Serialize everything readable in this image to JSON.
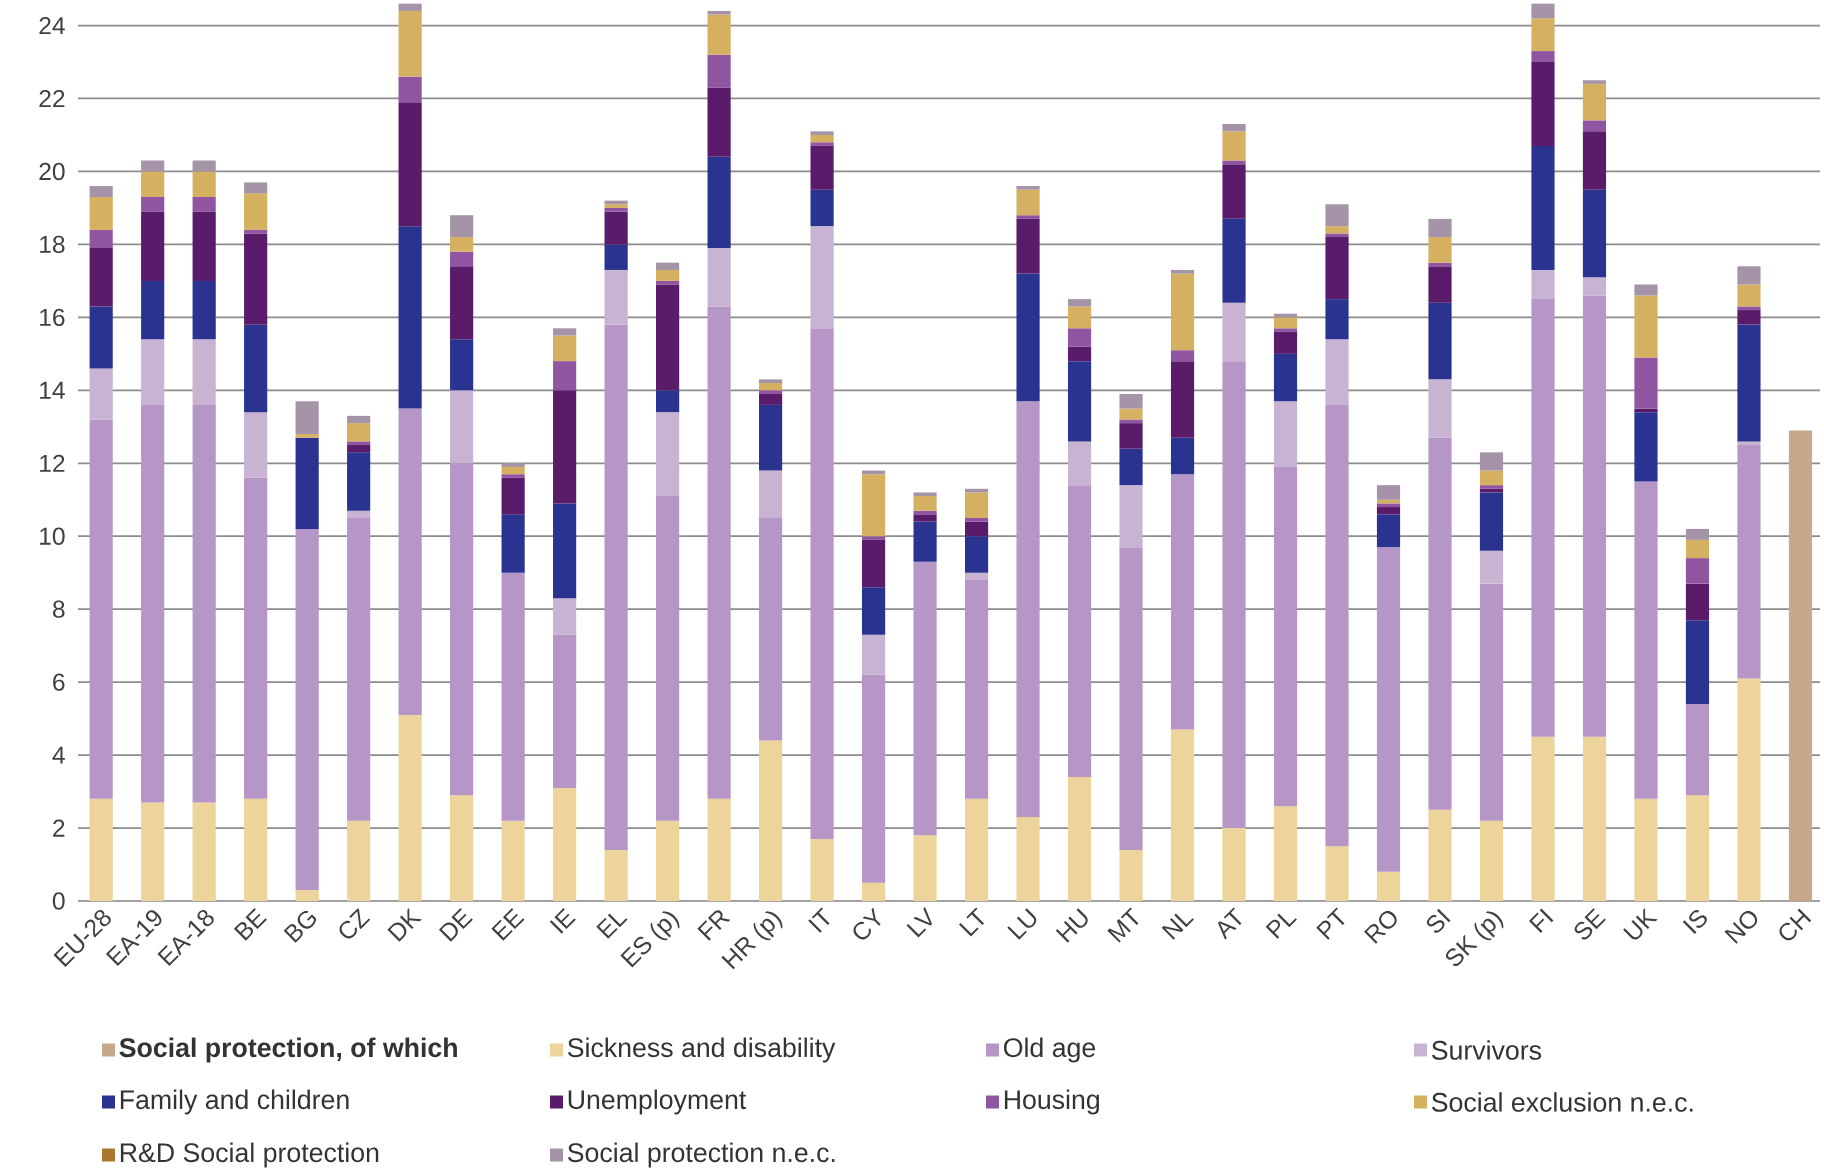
{
  "chart_data": {
    "type": "bar",
    "stacked": true,
    "grid": "y",
    "legend": "bottom",
    "categories": [
      "EU-28",
      "EA-19",
      "EA-18",
      "BE",
      "BG",
      "CZ",
      "DK",
      "DE",
      "EE",
      "IE",
      "EL",
      "ES (p)",
      "FR",
      "HR (p)",
      "IT",
      "CY",
      "LV",
      "LT",
      "LU",
      "HU",
      "MT",
      "NL",
      "AT",
      "PL",
      "PT",
      "RO",
      "SI",
      "SK (p)",
      "FI",
      "SE",
      "UK",
      "IS",
      "NO",
      "CH"
    ],
    "ylim": [
      0,
      24.7
    ],
    "yticks": [
      0,
      2,
      4,
      6,
      8,
      10,
      12,
      14,
      16,
      18,
      20,
      22,
      24
    ],
    "series": [
      {
        "name": "Social protection, of which",
        "color": "#c8a88a",
        "values": [
          null,
          null,
          null,
          null,
          null,
          null,
          null,
          null,
          null,
          null,
          null,
          null,
          null,
          null,
          null,
          null,
          null,
          null,
          null,
          null,
          null,
          null,
          null,
          null,
          null,
          null,
          null,
          null,
          null,
          null,
          null,
          null,
          null,
          12.9
        ]
      },
      {
        "name": "Sickness and disability",
        "color": "#ecd49a",
        "values": [
          2.8,
          2.7,
          2.7,
          2.8,
          0.3,
          2.2,
          5.1,
          2.9,
          2.2,
          3.1,
          1.4,
          2.2,
          2.8,
          4.4,
          1.7,
          0.5,
          1.8,
          2.8,
          2.3,
          3.4,
          1.4,
          4.7,
          2.0,
          2.6,
          1.5,
          0.8,
          2.5,
          2.2,
          4.5,
          4.5,
          2.8,
          2.9,
          6.1,
          null
        ]
      },
      {
        "name": "Old age",
        "color": "#b596c6",
        "values": [
          10.4,
          10.9,
          10.9,
          8.8,
          9.9,
          8.3,
          8.4,
          9.1,
          6.8,
          4.2,
          14.4,
          8.9,
          13.5,
          6.1,
          14.0,
          5.7,
          7.5,
          6.0,
          11.4,
          8.0,
          8.3,
          7.0,
          12.8,
          9.3,
          12.1,
          8.9,
          10.2,
          6.5,
          12.0,
          12.1,
          8.7,
          2.5,
          6.4,
          null
        ]
      },
      {
        "name": "Survivors",
        "color": "#c9b3d2",
        "values": [
          1.4,
          1.8,
          1.8,
          1.8,
          null,
          0.2,
          null,
          2.0,
          null,
          1.0,
          1.5,
          2.3,
          1.6,
          1.3,
          2.8,
          1.1,
          null,
          0.2,
          null,
          1.2,
          1.7,
          null,
          1.6,
          1.8,
          1.8,
          null,
          1.6,
          0.9,
          0.8,
          0.5,
          null,
          null,
          0.1,
          null
        ]
      },
      {
        "name": "Family and children",
        "color": "#2a3390",
        "values": [
          1.7,
          1.6,
          1.6,
          2.4,
          2.5,
          1.6,
          5.0,
          1.4,
          1.6,
          2.6,
          0.7,
          0.6,
          2.5,
          1.8,
          1.0,
          1.3,
          1.1,
          1.0,
          3.5,
          2.2,
          1.0,
          1.0,
          2.3,
          1.3,
          1.1,
          0.9,
          2.1,
          1.6,
          3.4,
          2.4,
          1.9,
          2.3,
          3.2,
          null
        ]
      },
      {
        "name": "Unemployment",
        "color": "#5a1c6a",
        "values": [
          1.6,
          1.9,
          1.9,
          2.5,
          null,
          0.2,
          3.4,
          2.0,
          1.0,
          3.1,
          0.9,
          2.9,
          1.9,
          0.3,
          1.2,
          1.3,
          0.2,
          0.4,
          1.5,
          0.4,
          0.7,
          2.1,
          1.5,
          0.6,
          1.7,
          0.2,
          1.0,
          0.1,
          2.3,
          1.6,
          0.1,
          1.0,
          0.4,
          null
        ]
      },
      {
        "name": "Housing",
        "color": "#8f55a0",
        "values": [
          0.5,
          0.4,
          0.4,
          0.1,
          null,
          0.1,
          0.7,
          0.4,
          0.1,
          0.8,
          0.1,
          0.1,
          0.9,
          0.1,
          0.1,
          0.1,
          0.1,
          0.1,
          0.1,
          0.5,
          0.1,
          0.3,
          0.1,
          0.1,
          0.1,
          0.1,
          0.1,
          0.1,
          0.3,
          0.3,
          1.4,
          0.7,
          0.1,
          null
        ]
      },
      {
        "name": "Social exclusion n.e.c.",
        "color": "#d4b060",
        "values": [
          0.9,
          0.7,
          0.7,
          1.0,
          0.1,
          0.5,
          1.8,
          0.4,
          0.2,
          0.7,
          0.1,
          0.3,
          1.1,
          0.2,
          0.2,
          1.7,
          0.4,
          0.7,
          0.7,
          0.6,
          0.3,
          2.1,
          0.8,
          0.3,
          0.2,
          0.1,
          0.7,
          0.4,
          0.9,
          1.0,
          1.7,
          0.5,
          0.6,
          null
        ]
      },
      {
        "name": "R&D Social protection",
        "color": "#a8782e",
        "values": [
          null,
          null,
          null,
          null,
          null,
          null,
          null,
          null,
          null,
          null,
          null,
          null,
          null,
          null,
          null,
          null,
          null,
          null,
          null,
          null,
          null,
          null,
          null,
          null,
          null,
          null,
          null,
          null,
          null,
          null,
          null,
          null,
          null,
          null
        ]
      },
      {
        "name": "Social protection n.e.c.",
        "color": "#a594a8",
        "values": [
          0.3,
          0.3,
          0.3,
          0.3,
          0.9,
          0.2,
          0.2,
          0.6,
          0.1,
          0.2,
          0.1,
          0.2,
          0.1,
          0.1,
          0.1,
          0.1,
          0.1,
          0.1,
          0.1,
          0.2,
          0.4,
          0.1,
          0.2,
          0.1,
          0.6,
          0.4,
          0.5,
          0.5,
          0.4,
          0.1,
          0.3,
          0.3,
          0.5,
          null
        ]
      }
    ]
  }
}
